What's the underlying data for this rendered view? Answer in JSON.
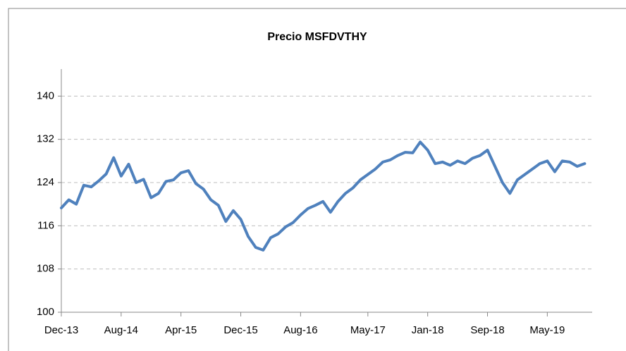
{
  "chart_data": {
    "type": "line",
    "title": "Precio MSFDVTHY",
    "x": [
      "2013-12",
      "2014-01",
      "2014-02",
      "2014-03",
      "2014-04",
      "2014-05",
      "2014-06",
      "2014-07",
      "2014-08",
      "2014-09",
      "2014-10",
      "2014-11",
      "2014-12",
      "2015-01",
      "2015-02",
      "2015-03",
      "2015-04",
      "2015-05",
      "2015-06",
      "2015-07",
      "2015-08",
      "2015-09",
      "2015-10",
      "2015-11",
      "2015-12",
      "2016-01",
      "2016-02",
      "2016-03",
      "2016-04",
      "2016-05",
      "2016-06",
      "2016-07",
      "2016-08",
      "2016-09",
      "2016-10",
      "2016-11",
      "2016-12",
      "2017-01",
      "2017-02",
      "2017-03",
      "2017-04",
      "2017-05",
      "2017-06",
      "2017-07",
      "2017-08",
      "2017-09",
      "2017-10",
      "2017-11",
      "2017-12",
      "2018-01",
      "2018-02",
      "2018-03",
      "2018-04",
      "2018-05",
      "2018-06",
      "2018-07",
      "2018-08",
      "2018-09",
      "2018-10",
      "2018-11",
      "2018-12",
      "2019-01",
      "2019-02",
      "2019-03",
      "2019-04",
      "2019-05",
      "2019-06",
      "2019-07",
      "2019-08",
      "2019-09",
      "2019-10"
    ],
    "series": [
      {
        "name": "MSFDVTHY",
        "color": "#4f81bd",
        "values": [
          119.3,
          120.8,
          120.0,
          123.5,
          123.2,
          124.3,
          125.6,
          128.6,
          125.2,
          127.4,
          124.0,
          124.6,
          121.2,
          122.0,
          124.2,
          124.5,
          125.8,
          126.2,
          123.8,
          122.8,
          120.8,
          119.8,
          116.8,
          118.8,
          117.2,
          114.0,
          112.0,
          111.5,
          113.8,
          114.5,
          115.8,
          116.6,
          118.0,
          119.2,
          119.8,
          120.5,
          118.5,
          120.5,
          122.0,
          123.0,
          124.5,
          125.5,
          126.5,
          127.8,
          128.2,
          129.0,
          129.6,
          129.5,
          131.5,
          130.0,
          127.5,
          127.8,
          127.2,
          128.0,
          127.5,
          128.5,
          129.0,
          130.0,
          127.0,
          124.0,
          122.0,
          124.5,
          125.5,
          126.5,
          127.5,
          128.0,
          126.0,
          128.0,
          127.8,
          127.0,
          127.5
        ]
      }
    ],
    "xlim": [
      "2013-12",
      "2019-11"
    ],
    "xticks": [
      {
        "value": "2013-12",
        "label": "Dec-13"
      },
      {
        "value": "2014-08",
        "label": "Aug-14"
      },
      {
        "value": "2015-04",
        "label": "Apr-15"
      },
      {
        "value": "2015-12",
        "label": "Dec-15"
      },
      {
        "value": "2016-08",
        "label": "Aug-16"
      },
      {
        "value": "2017-05",
        "label": "May-17"
      },
      {
        "value": "2018-01",
        "label": "Jan-18"
      },
      {
        "value": "2018-09",
        "label": "Sep-18"
      },
      {
        "value": "2019-05",
        "label": "May-19"
      }
    ],
    "ylim": [
      100,
      145
    ],
    "yticks": [
      100,
      108,
      116,
      124,
      132,
      140
    ],
    "grid": true
  }
}
